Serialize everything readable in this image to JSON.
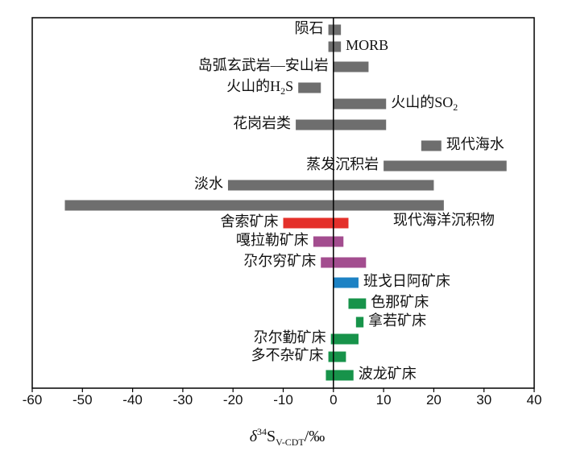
{
  "chart_data": {
    "type": "bar",
    "orientation": "horizontal-range",
    "xlabel": "δ34SV-CDT/‰",
    "xlabel_parts": {
      "symbol": "δ",
      "sup": "34",
      "base": "S",
      "sub": "V-CDT",
      "unit": "/‰"
    },
    "xlim": [
      -60,
      40
    ],
    "xticks": [
      -60,
      -50,
      -40,
      -30,
      -20,
      -10,
      0,
      10,
      20,
      30,
      40
    ],
    "grid": false,
    "reference_line_x": 0,
    "series": [
      {
        "name": "陨石",
        "label_parts": [
          "陨石"
        ],
        "range": [
          -1,
          1.5
        ],
        "color": "#6e6e6e",
        "label_side": "left"
      },
      {
        "name": "MORB",
        "label_parts": [
          "MORB"
        ],
        "range": [
          -1,
          1.5
        ],
        "color": "#6e6e6e",
        "label_side": "right"
      },
      {
        "name": "岛弧玄武岩—安山岩",
        "label_parts": [
          "岛弧玄武岩—安山岩"
        ],
        "range": [
          0,
          7
        ],
        "color": "#6e6e6e",
        "label_side": "left"
      },
      {
        "name": "火山的H2S",
        "label_parts": [
          "火山的H",
          "2",
          "S"
        ],
        "range": [
          -7,
          -2.5
        ],
        "color": "#6e6e6e",
        "label_side": "left"
      },
      {
        "name": "火山的SO2",
        "label_parts": [
          "火山的SO",
          "2",
          ""
        ],
        "range": [
          0,
          10.5
        ],
        "color": "#6e6e6e",
        "label_side": "right"
      },
      {
        "name": "花岗岩类",
        "label_parts": [
          "花岗岩类"
        ],
        "range": [
          -7.5,
          10.5
        ],
        "color": "#6e6e6e",
        "label_side": "left"
      },
      {
        "name": "现代海水",
        "label_parts": [
          "现代海水"
        ],
        "range": [
          17.5,
          21.5
        ],
        "color": "#6e6e6e",
        "label_side": "right"
      },
      {
        "name": "蒸发沉积岩",
        "label_parts": [
          "蒸发沉积岩"
        ],
        "range": [
          10,
          34.5
        ],
        "color": "#6e6e6e",
        "label_side": "left"
      },
      {
        "name": "淡水",
        "label_parts": [
          "淡水"
        ],
        "range": [
          -21,
          20
        ],
        "color": "#6e6e6e",
        "label_side": "left"
      },
      {
        "name": "现代海洋沉积物",
        "label_parts": [
          "现代海洋沉积物"
        ],
        "range": [
          -53.5,
          22
        ],
        "color": "#6e6e6e",
        "label_side": "right-below"
      },
      {
        "name": "舍索矿床",
        "label_parts": [
          "舍索矿床"
        ],
        "range": [
          -10,
          3
        ],
        "color": "#e4302a",
        "label_side": "left"
      },
      {
        "name": "嘎拉勒矿床",
        "label_parts": [
          "嘎拉勒矿床"
        ],
        "range": [
          -4,
          2
        ],
        "color": "#a34d8f",
        "label_side": "left"
      },
      {
        "name": "尕尔穷矿床",
        "label_parts": [
          "尕尔穷矿床"
        ],
        "range": [
          -2.5,
          6.5
        ],
        "color": "#a34d8f",
        "label_side": "left"
      },
      {
        "name": "班戈日阿矿床",
        "label_parts": [
          "班戈日阿矿床"
        ],
        "range": [
          0,
          5
        ],
        "color": "#1d82c4",
        "label_side": "right"
      },
      {
        "name": "色那矿床",
        "label_parts": [
          "色那矿床"
        ],
        "range": [
          3,
          6.5
        ],
        "color": "#17934a",
        "label_side": "right"
      },
      {
        "name": "拿若矿床",
        "label_parts": [
          "拿若矿床"
        ],
        "range": [
          4.5,
          6
        ],
        "color": "#17934a",
        "label_side": "right"
      },
      {
        "name": "尕尔勤矿床",
        "label_parts": [
          "尕尔勤矿床"
        ],
        "range": [
          -0.5,
          5
        ],
        "color": "#17934a",
        "label_side": "left"
      },
      {
        "name": "多不杂矿床",
        "label_parts": [
          "多不杂矿床"
        ],
        "range": [
          -1,
          2.5
        ],
        "color": "#17934a",
        "label_side": "left"
      },
      {
        "name": "波龙矿床",
        "label_parts": [
          "波龙矿床"
        ],
        "range": [
          -1.5,
          4
        ],
        "color": "#17934a",
        "label_side": "right"
      }
    ]
  }
}
